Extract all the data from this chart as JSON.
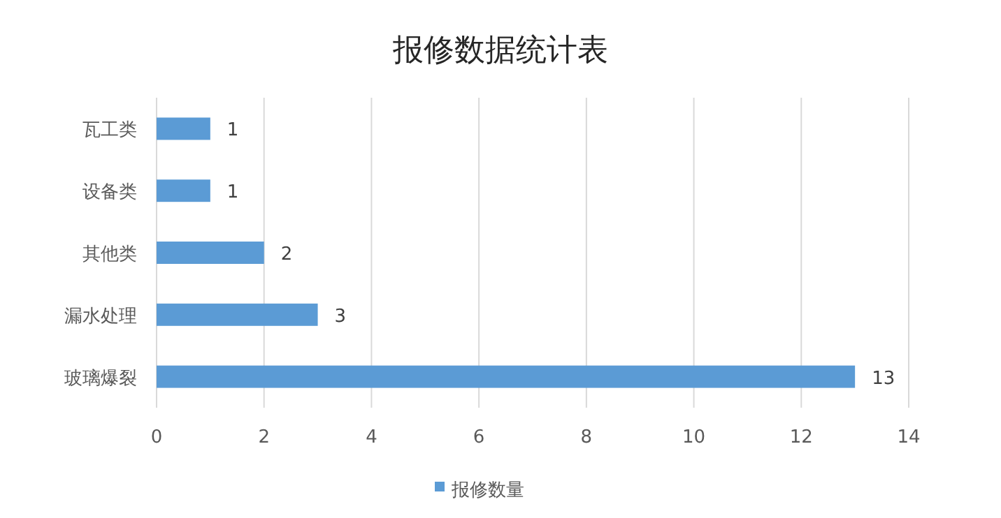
{
  "chart_data": {
    "type": "bar",
    "orientation": "horizontal",
    "title": "报修数据统计表",
    "categories": [
      "瓦工类",
      "设备类",
      "其他类",
      "漏水处理",
      "玻璃爆裂"
    ],
    "series": [
      {
        "name": "报修数量",
        "color": "#5b9bd5",
        "values": [
          1,
          1,
          2,
          3,
          13
        ]
      }
    ],
    "xlim": [
      0,
      14
    ],
    "xticks": [
      0,
      2,
      4,
      6,
      8,
      10,
      12,
      14
    ],
    "grid": "x",
    "legend": "bottom",
    "data_labels": true
  }
}
